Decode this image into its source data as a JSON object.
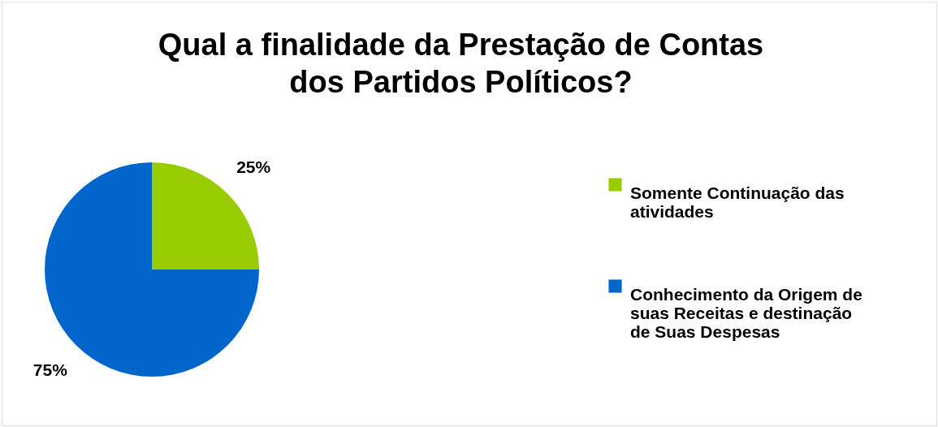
{
  "chart_data": {
    "type": "pie",
    "title": "Qual a finalidade da Prestação de Contas dos Partidos Políticos?",
    "categories": [
      "Somente Continuação das atividades",
      "Conhecimento da Origem de suas Receitas e destinação de Suas Despesas"
    ],
    "values": [
      25,
      75
    ],
    "colors": [
      "#99cc00",
      "#0066cc"
    ],
    "value_labels": [
      "25%",
      "75%"
    ],
    "legend": "right"
  }
}
